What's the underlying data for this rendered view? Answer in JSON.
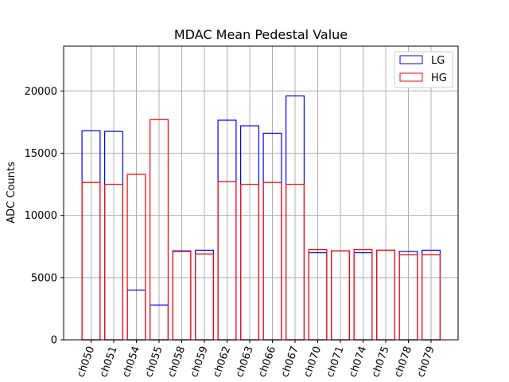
{
  "chart_data": {
    "type": "bar",
    "title": "MDAC Mean Pedestal Value",
    "xlabel": "",
    "ylabel": "ADC Counts",
    "ylim": [
      0,
      23600
    ],
    "yticks": [
      0,
      5000,
      10000,
      15000,
      20000
    ],
    "ytick_labels": [
      "0",
      "5000",
      "10000",
      "15000",
      "20000"
    ],
    "grid": true,
    "legend_position": "top-right",
    "categories": [
      "ch050",
      "ch051",
      "ch054",
      "ch055",
      "ch058",
      "ch059",
      "ch062",
      "ch063",
      "ch066",
      "ch067",
      "ch070",
      "ch071",
      "ch074",
      "ch075",
      "ch078",
      "ch079"
    ],
    "series": [
      {
        "name": "LG",
        "color": "#0000ff",
        "values": [
          16800,
          16750,
          4000,
          2800,
          7150,
          7200,
          17650,
          17200,
          16600,
          19600,
          7000,
          7150,
          7000,
          7200,
          7100,
          7200
        ]
      },
      {
        "name": "HG",
        "color": "#ff0000",
        "values": [
          12650,
          12500,
          13300,
          17700,
          7100,
          6900,
          12700,
          12500,
          12650,
          12500,
          7250,
          7150,
          7250,
          7200,
          6850,
          6850
        ]
      }
    ]
  }
}
